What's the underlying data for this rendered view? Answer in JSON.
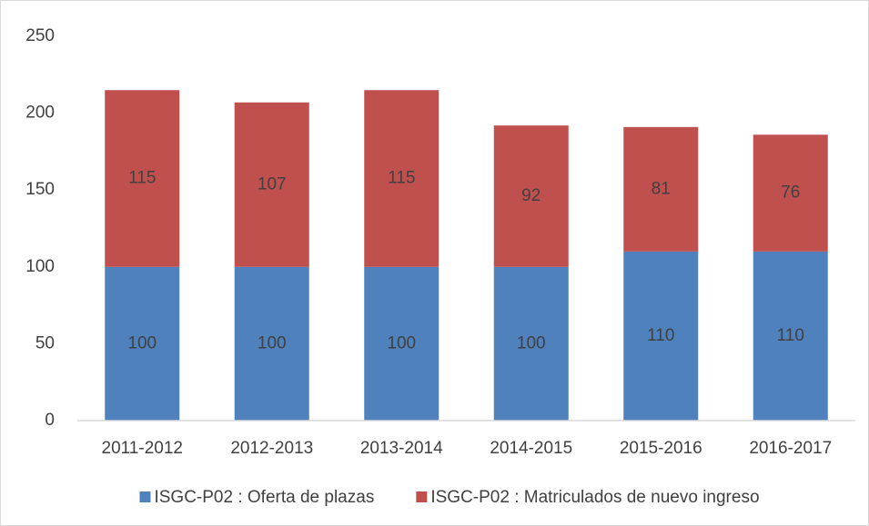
{
  "chart_data": {
    "type": "stacked_bar",
    "categories": [
      "2011-2012",
      "2012-2013",
      "2013-2014",
      "2014-2015",
      "2015-2016",
      "2016-2017"
    ],
    "series": [
      {
        "name": "ISGC-P02 : Oferta de plazas",
        "color": "#4f81bd",
        "values": [
          100,
          100,
          100,
          100,
          110,
          110
        ]
      },
      {
        "name": "ISGC-P02 : Matriculados de nuevo ingreso",
        "color": "#c0504d",
        "values": [
          115,
          107,
          115,
          92,
          81,
          76
        ]
      }
    ],
    "ylim": [
      0,
      250
    ],
    "yticks": [
      0,
      50,
      100,
      150,
      200,
      250
    ],
    "grid": false,
    "legend": "bottom"
  }
}
